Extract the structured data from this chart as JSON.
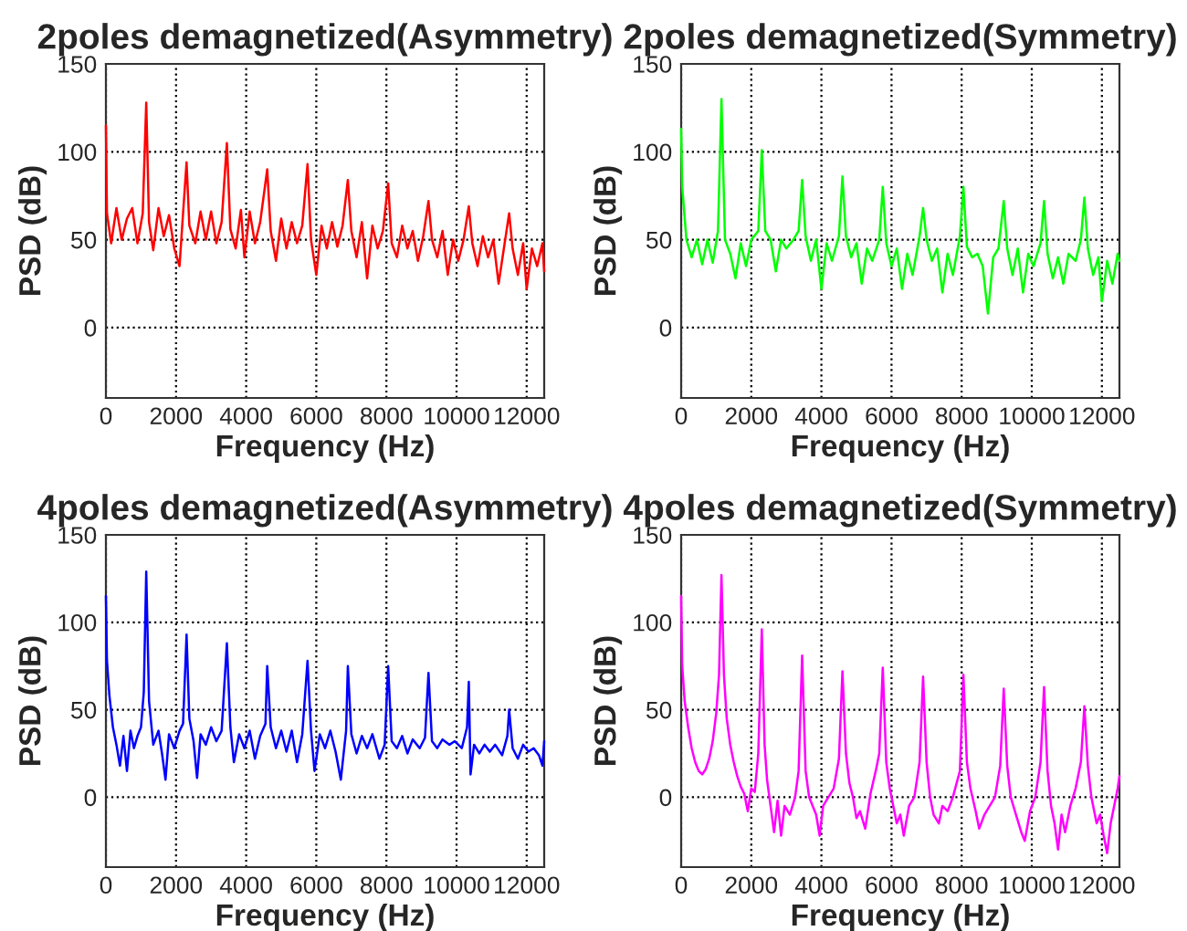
{
  "chart_data": [
    {
      "type": "line",
      "title": "2poles demagnetized(Asymmetry)",
      "xlabel": "Frequency (Hz)",
      "ylabel": "PSD (dB)",
      "xlim": [
        0,
        12500
      ],
      "ylim": [
        -40,
        150
      ],
      "xticks": [
        0,
        2000,
        4000,
        6000,
        8000,
        10000,
        12000
      ],
      "yticks": [
        0,
        50,
        100,
        150
      ],
      "grid": true,
      "series": [
        {
          "color": "#ff0000",
          "x": [
            0,
            30,
            150,
            300,
            450,
            600,
            750,
            900,
            1050,
            1150,
            1230,
            1350,
            1500,
            1650,
            1800,
            1950,
            2100,
            2200,
            2300,
            2380,
            2550,
            2700,
            2850,
            3000,
            3150,
            3300,
            3450,
            3550,
            3700,
            3850,
            3950,
            4100,
            4250,
            4400,
            4600,
            4700,
            4850,
            5000,
            5150,
            5300,
            5450,
            5600,
            5750,
            5850,
            6000,
            6150,
            6300,
            6450,
            6600,
            6750,
            6900,
            7000,
            7150,
            7300,
            7450,
            7600,
            7750,
            7900,
            8050,
            8150,
            8300,
            8450,
            8600,
            8750,
            8900,
            9050,
            9200,
            9300,
            9450,
            9600,
            9750,
            9900,
            10050,
            10200,
            10350,
            10450,
            10600,
            10750,
            10900,
            11050,
            11200,
            11350,
            11500,
            11600,
            11750,
            11900,
            12000,
            12150,
            12300,
            12450,
            12500
          ],
          "values": [
            115,
            65,
            48,
            68,
            50,
            62,
            68,
            48,
            65,
            128,
            60,
            44,
            68,
            52,
            64,
            45,
            35,
            65,
            94,
            58,
            48,
            66,
            50,
            66,
            48,
            60,
            105,
            56,
            45,
            67,
            40,
            66,
            48,
            60,
            90,
            55,
            38,
            62,
            45,
            60,
            48,
            58,
            93,
            50,
            30,
            58,
            45,
            60,
            46,
            58,
            84,
            55,
            40,
            60,
            28,
            58,
            45,
            55,
            82,
            48,
            40,
            58,
            45,
            55,
            38,
            52,
            72,
            50,
            40,
            55,
            30,
            50,
            38,
            50,
            69,
            48,
            35,
            52,
            40,
            50,
            25,
            45,
            65,
            45,
            30,
            48,
            22,
            45,
            35,
            48,
            32
          ]
        }
      ]
    },
    {
      "type": "line",
      "title": "2poles demagnetized(Symmetry)",
      "xlabel": "Frequency (Hz)",
      "ylabel": "PSD (dB)",
      "xlim": [
        0,
        12500
      ],
      "ylim": [
        -40,
        150
      ],
      "xticks": [
        0,
        2000,
        4000,
        6000,
        8000,
        10000,
        12000
      ],
      "yticks": [
        0,
        50,
        100,
        150
      ],
      "grid": true,
      "series": [
        {
          "color": "#00ff00",
          "x": [
            0,
            30,
            150,
            300,
            450,
            600,
            750,
            900,
            1050,
            1150,
            1250,
            1400,
            1550,
            1700,
            1850,
            2000,
            2200,
            2300,
            2400,
            2550,
            2700,
            2850,
            3000,
            3200,
            3350,
            3450,
            3550,
            3700,
            3850,
            4000,
            4150,
            4300,
            4500,
            4600,
            4700,
            4850,
            5000,
            5150,
            5300,
            5450,
            5650,
            5750,
            5850,
            6000,
            6150,
            6300,
            6450,
            6600,
            6800,
            6900,
            7000,
            7150,
            7300,
            7450,
            7600,
            7750,
            7950,
            8050,
            8150,
            8300,
            8450,
            8600,
            8750,
            8900,
            9050,
            9200,
            9300,
            9450,
            9600,
            9750,
            9900,
            10050,
            10250,
            10350,
            10450,
            10600,
            10750,
            10900,
            11050,
            11250,
            11400,
            11500,
            11600,
            11750,
            11900,
            12000,
            12150,
            12300,
            12450,
            12500
          ],
          "values": [
            113,
            80,
            50,
            40,
            50,
            36,
            50,
            37,
            55,
            130,
            50,
            42,
            28,
            48,
            35,
            50,
            55,
            101,
            55,
            50,
            32,
            50,
            45,
            50,
            55,
            84,
            52,
            38,
            50,
            22,
            48,
            38,
            52,
            86,
            52,
            40,
            48,
            25,
            45,
            38,
            50,
            80,
            48,
            35,
            45,
            22,
            42,
            30,
            52,
            68,
            50,
            38,
            45,
            20,
            42,
            30,
            52,
            80,
            46,
            40,
            42,
            35,
            8,
            40,
            45,
            72,
            45,
            30,
            45,
            20,
            42,
            35,
            48,
            72,
            42,
            28,
            40,
            25,
            42,
            38,
            50,
            74,
            45,
            30,
            40,
            15,
            38,
            25,
            42,
            38
          ]
        }
      ]
    },
    {
      "type": "line",
      "title": "4poles demagnetized(Asymmetry)",
      "xlabel": "Frequency (Hz)",
      "ylabel": "PSD (dB)",
      "xlim": [
        0,
        12500
      ],
      "ylim": [
        -40,
        150
      ],
      "xticks": [
        0,
        2000,
        4000,
        6000,
        8000,
        10000,
        12000
      ],
      "yticks": [
        0,
        50,
        100,
        150
      ],
      "grid": true,
      "series": [
        {
          "color": "#0000ff",
          "x": [
            0,
            30,
            100,
            200,
            300,
            400,
            500,
            600,
            700,
            800,
            900,
            1000,
            1080,
            1150,
            1230,
            1350,
            1500,
            1600,
            1700,
            1800,
            1950,
            2100,
            2200,
            2300,
            2380,
            2500,
            2600,
            2700,
            2850,
            3000,
            3150,
            3300,
            3450,
            3550,
            3650,
            3800,
            3950,
            4100,
            4250,
            4400,
            4550,
            4600,
            4700,
            4850,
            5000,
            5150,
            5300,
            5450,
            5600,
            5750,
            5850,
            5950,
            6100,
            6250,
            6400,
            6550,
            6700,
            6850,
            6900,
            7000,
            7150,
            7300,
            7450,
            7600,
            7800,
            7950,
            8050,
            8150,
            8300,
            8450,
            8600,
            8750,
            8950,
            9100,
            9200,
            9300,
            9450,
            9600,
            9800,
            9950,
            10150,
            10300,
            10350,
            10400,
            10500,
            10650,
            10800,
            10950,
            11100,
            11300,
            11450,
            11500,
            11600,
            11750,
            11900,
            12050,
            12200,
            12350,
            12450,
            12500
          ],
          "values": [
            115,
            78,
            58,
            40,
            30,
            18,
            35,
            15,
            38,
            28,
            35,
            40,
            60,
            129,
            55,
            30,
            38,
            25,
            10,
            36,
            28,
            38,
            42,
            93,
            45,
            32,
            11,
            36,
            30,
            40,
            32,
            38,
            88,
            40,
            20,
            36,
            28,
            38,
            22,
            35,
            42,
            75,
            40,
            28,
            38,
            26,
            38,
            20,
            36,
            78,
            38,
            15,
            36,
            28,
            38,
            26,
            10,
            38,
            75,
            36,
            25,
            35,
            28,
            36,
            22,
            30,
            75,
            32,
            28,
            35,
            25,
            33,
            28,
            34,
            71,
            32,
            28,
            33,
            30,
            32,
            28,
            40,
            66,
            13,
            30,
            25,
            30,
            26,
            30,
            24,
            35,
            50,
            28,
            22,
            30,
            26,
            28,
            24,
            18,
            32
          ]
        }
      ]
    },
    {
      "type": "line",
      "title": "4poles demagnetized(Symmetry)",
      "xlabel": "Frequency (Hz)",
      "ylabel": "PSD (dB)",
      "xlim": [
        0,
        12500
      ],
      "ylim": [
        -40,
        150
      ],
      "xticks": [
        0,
        2000,
        4000,
        6000,
        8000,
        10000,
        12000
      ],
      "yticks": [
        0,
        50,
        100,
        150
      ],
      "grid": true,
      "series": [
        {
          "color": "#ff00ff",
          "x": [
            0,
            30,
            100,
            200,
            300,
            400,
            500,
            600,
            700,
            800,
            900,
            1000,
            1080,
            1150,
            1220,
            1300,
            1400,
            1500,
            1600,
            1700,
            1800,
            1900,
            2000,
            2100,
            2200,
            2300,
            2380,
            2450,
            2550,
            2650,
            2750,
            2850,
            2950,
            3100,
            3250,
            3350,
            3450,
            3550,
            3650,
            3750,
            3850,
            3950,
            4050,
            4200,
            4350,
            4500,
            4600,
            4700,
            4800,
            4900,
            5000,
            5100,
            5250,
            5400,
            5550,
            5650,
            5750,
            5850,
            5950,
            6050,
            6150,
            6250,
            6350,
            6500,
            6650,
            6800,
            6900,
            7000,
            7100,
            7200,
            7350,
            7450,
            7600,
            7750,
            7950,
            8050,
            8150,
            8250,
            8400,
            8500,
            8650,
            8800,
            8950,
            9100,
            9200,
            9300,
            9400,
            9550,
            9700,
            9800,
            9950,
            10100,
            10250,
            10350,
            10450,
            10550,
            10650,
            10750,
            10850,
            10950,
            11100,
            11250,
            11400,
            11500,
            11600,
            11700,
            11850,
            11950,
            12050,
            12150,
            12250,
            12350,
            12450,
            12500
          ],
          "values": [
            115,
            75,
            55,
            40,
            28,
            20,
            15,
            13,
            16,
            22,
            32,
            48,
            70,
            127,
            70,
            45,
            30,
            20,
            12,
            6,
            2,
            -8,
            5,
            3,
            25,
            96,
            30,
            10,
            -5,
            -20,
            -2,
            -22,
            -5,
            -10,
            0,
            15,
            81,
            15,
            0,
            -5,
            -10,
            -22,
            -5,
            0,
            5,
            22,
            72,
            25,
            8,
            0,
            -12,
            -8,
            -18,
            2,
            15,
            25,
            74,
            20,
            5,
            -5,
            -15,
            -10,
            -22,
            -5,
            0,
            20,
            69,
            20,
            0,
            -10,
            -15,
            -5,
            -8,
            0,
            15,
            70,
            20,
            5,
            -8,
            -18,
            -10,
            -5,
            0,
            18,
            62,
            18,
            0,
            -10,
            -20,
            -25,
            -8,
            0,
            20,
            63,
            15,
            -5,
            -15,
            -30,
            -10,
            -20,
            -5,
            5,
            20,
            52,
            18,
            0,
            -15,
            -10,
            -22,
            -32,
            -15,
            -5,
            5,
            12
          ]
        }
      ]
    }
  ]
}
